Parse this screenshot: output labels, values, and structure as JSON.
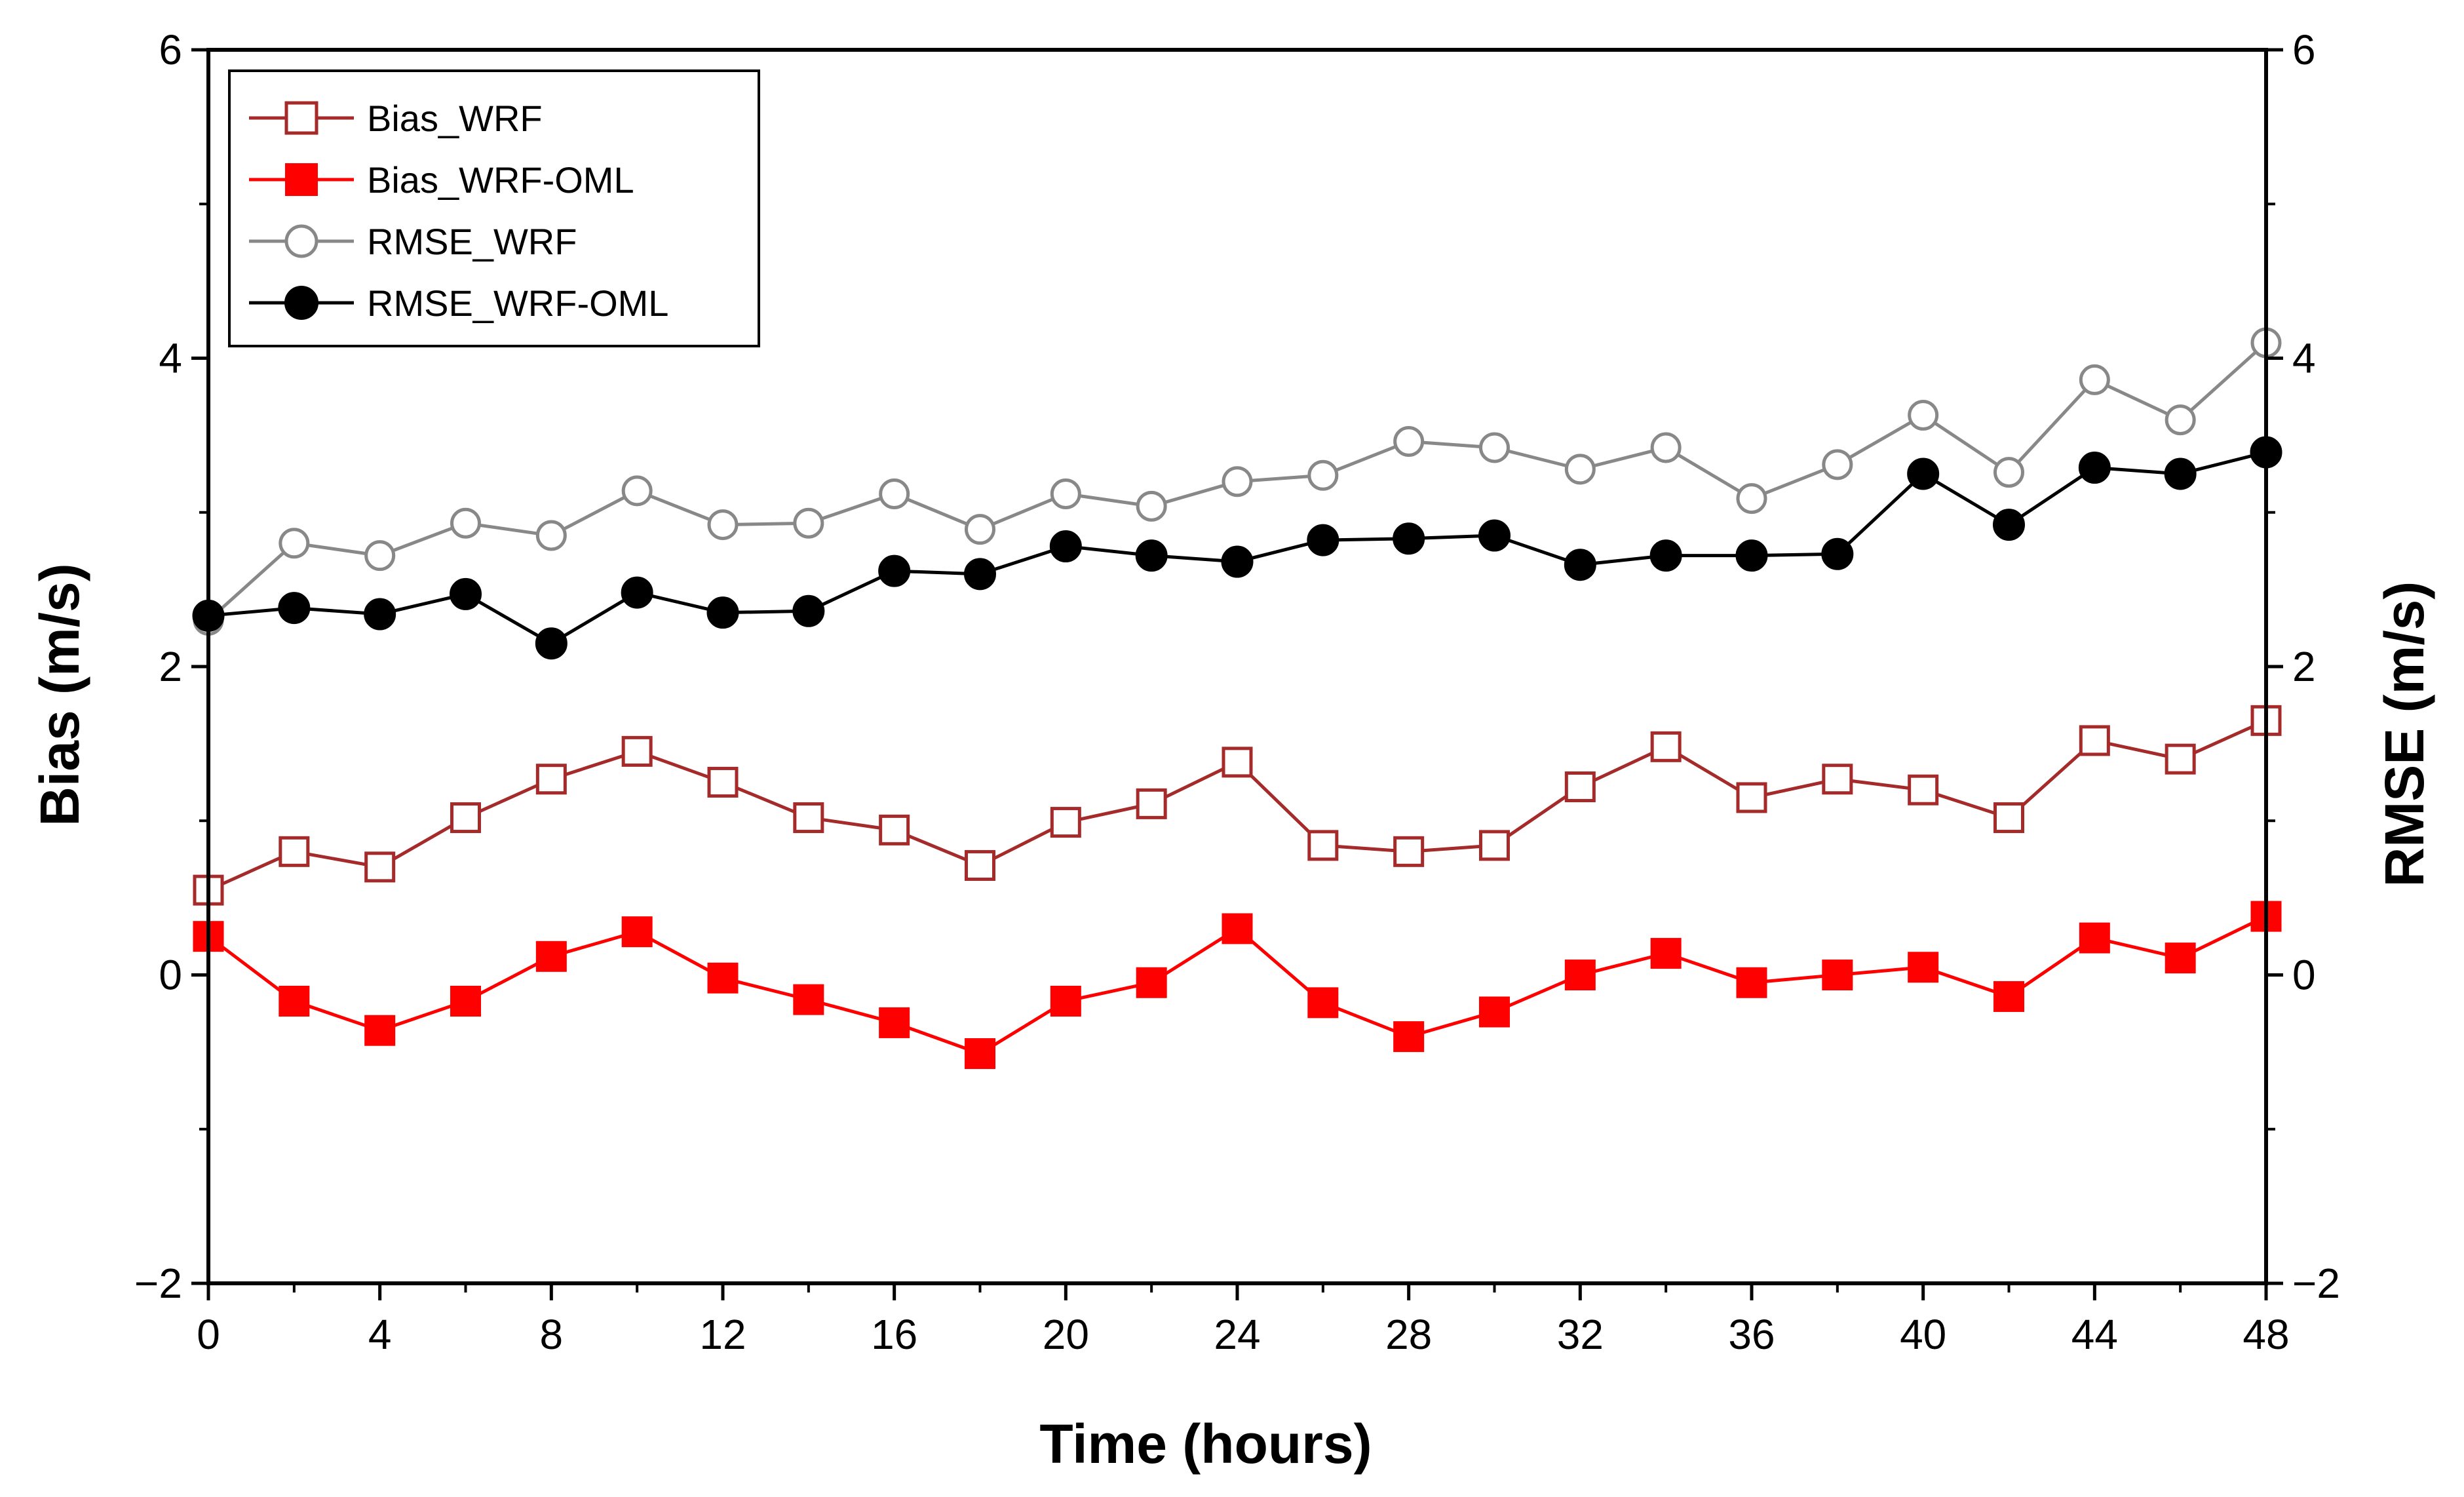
{
  "chart_data": {
    "type": "line",
    "title": "",
    "xlabel": "Time (hours)",
    "ylabel": "Bias (m/s)",
    "ylabel_right": "RMSE (m/s)",
    "xlim": [
      0,
      48
    ],
    "ylim": [
      -2,
      6
    ],
    "ylim_right": [
      -2,
      6
    ],
    "x_ticks": [
      0,
      4,
      8,
      12,
      16,
      20,
      24,
      28,
      32,
      36,
      40,
      44,
      48
    ],
    "y_ticks": [
      -2,
      0,
      2,
      4,
      6
    ],
    "y_ticks_right": [
      -2,
      0,
      2,
      4,
      6
    ],
    "grid": false,
    "legend_position": "top-left",
    "x": [
      0,
      2,
      4,
      6,
      8,
      10,
      12,
      14,
      16,
      18,
      20,
      22,
      24,
      26,
      28,
      30,
      32,
      34,
      36,
      38,
      40,
      42,
      44,
      46,
      48
    ],
    "series": [
      {
        "name": "Bias_WRF",
        "axis": "left",
        "color": "#a52a2a",
        "marker": "square-open",
        "values": [
          0.55,
          0.8,
          0.7,
          1.02,
          1.27,
          1.45,
          1.25,
          1.02,
          0.94,
          0.71,
          0.99,
          1.11,
          1.38,
          0.84,
          0.8,
          0.84,
          1.22,
          1.48,
          1.15,
          1.27,
          1.2,
          1.02,
          1.52,
          1.4,
          1.65
        ]
      },
      {
        "name": "Bias_WRF-OML",
        "axis": "left",
        "color": "#ff0000",
        "marker": "square-filled",
        "values": [
          0.25,
          -0.17,
          -0.36,
          -0.17,
          0.12,
          0.28,
          -0.02,
          -0.16,
          -0.31,
          -0.51,
          -0.17,
          -0.05,
          0.3,
          -0.18,
          -0.4,
          -0.24,
          0.0,
          0.14,
          -0.05,
          0.0,
          0.05,
          -0.14,
          0.24,
          0.11,
          0.38
        ]
      },
      {
        "name": "RMSE_WRF",
        "axis": "right",
        "color": "#888888",
        "marker": "circle-open",
        "values": [
          2.3,
          2.8,
          2.72,
          2.93,
          2.85,
          3.14,
          2.92,
          2.93,
          3.12,
          2.89,
          3.12,
          3.04,
          3.2,
          3.24,
          3.46,
          3.42,
          3.28,
          3.42,
          3.09,
          3.31,
          3.63,
          3.26,
          3.86,
          3.6,
          4.1
        ]
      },
      {
        "name": "RMSE_WRF-OML",
        "axis": "right",
        "color": "#000000",
        "marker": "circle-filled",
        "values": [
          2.33,
          2.38,
          2.34,
          2.47,
          2.15,
          2.48,
          2.35,
          2.36,
          2.62,
          2.6,
          2.78,
          2.72,
          2.68,
          2.82,
          2.83,
          2.85,
          2.66,
          2.72,
          2.72,
          2.73,
          3.25,
          2.92,
          3.29,
          3.25,
          3.39
        ]
      }
    ]
  }
}
